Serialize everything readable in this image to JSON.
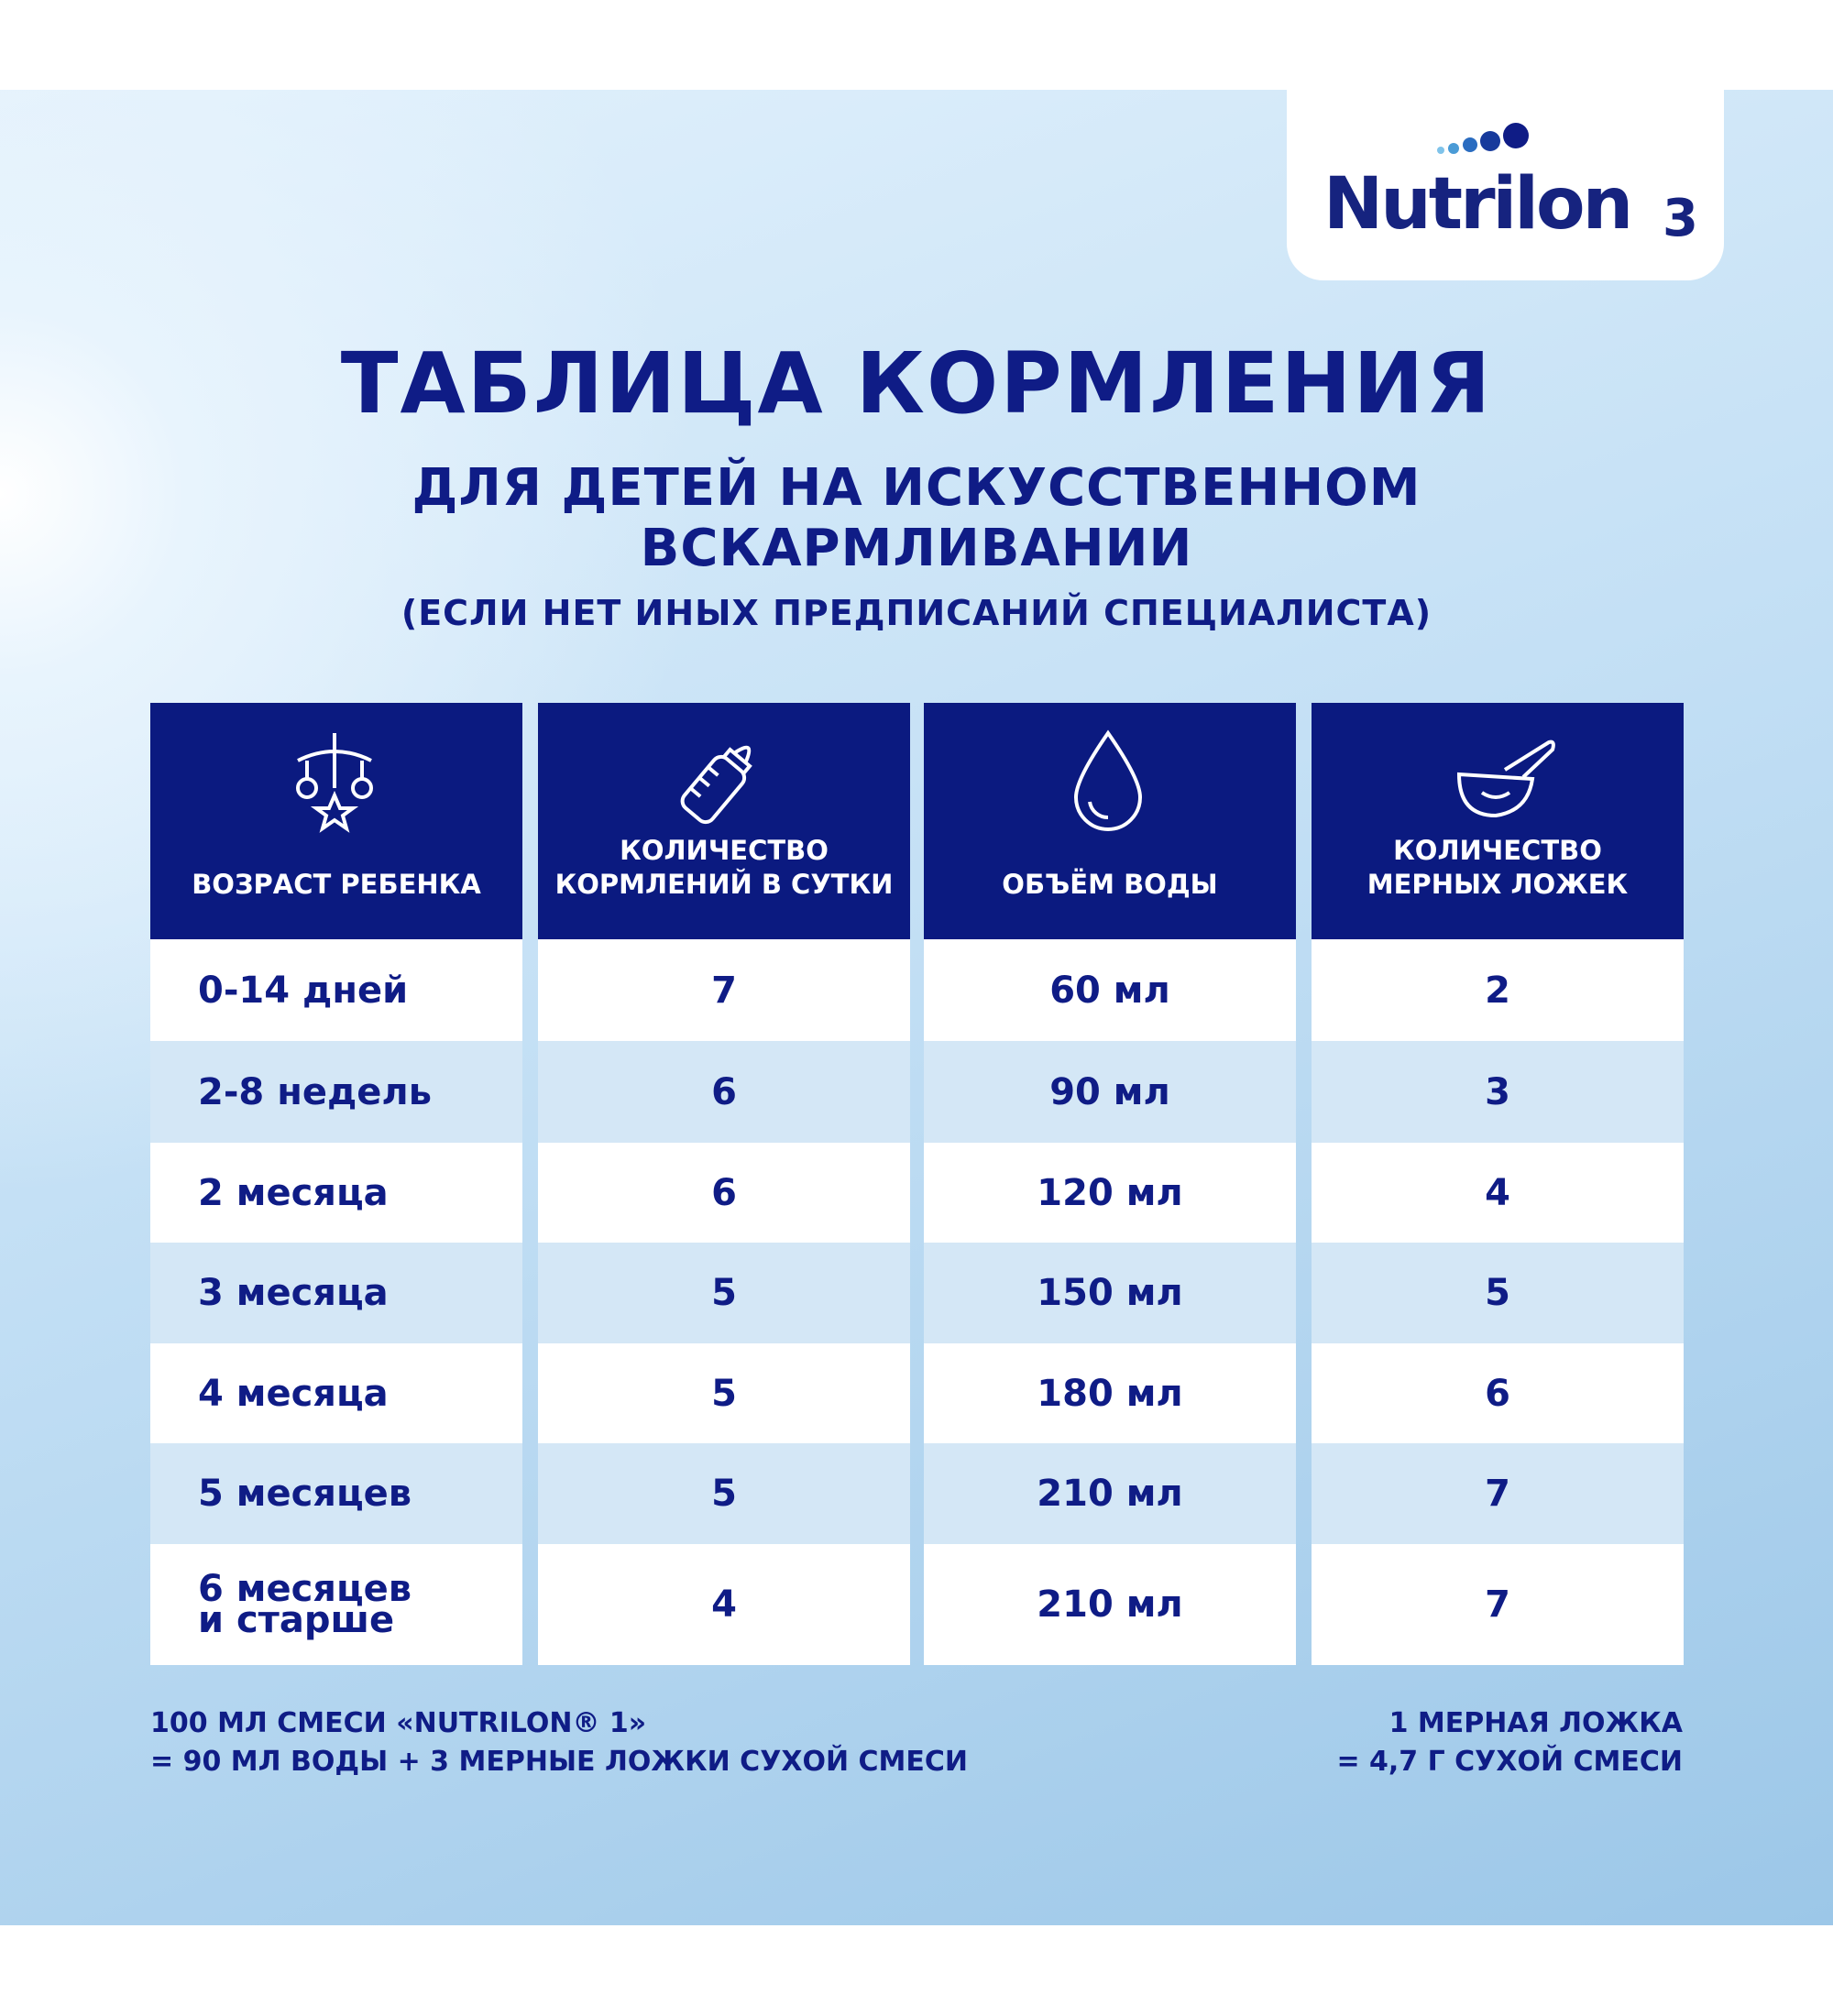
{
  "logo": {
    "brand": "Nutrilon",
    "stage": "3"
  },
  "title": "ТАБЛИЦА КОРМЛЕНИЯ",
  "subtitle": [
    "ДЛЯ ДЕТЕЙ НА ИСКУССТВЕННОМ",
    "ВСКАРМЛИВАНИИ"
  ],
  "note": "(ЕСЛИ НЕТ ИНЫХ ПРЕДПИСАНИЙ СПЕЦИАЛИСТА)",
  "table": {
    "columns": [
      "ВОЗРАСТ РЕБЕНКА",
      "КОЛИЧЕСТВО\nКОРМЛЕНИЙ В СУТКИ",
      "ОБЪЁМ ВОДЫ",
      "КОЛИЧЕСТВО\nМЕРНЫХ ЛОЖЕК"
    ],
    "rows": [
      [
        "0-14 дней",
        "7",
        "60 мл",
        "2"
      ],
      [
        "2-8 недель",
        "6",
        "90 мл",
        "3"
      ],
      [
        "2 месяца",
        "6",
        "120 мл",
        "4"
      ],
      [
        "3 месяца",
        "5",
        "150 мл",
        "5"
      ],
      [
        "4 месяца",
        "5",
        "180 мл",
        "6"
      ],
      [
        "5 месяцев",
        "5",
        "210 мл",
        "7"
      ],
      [
        "6 месяцев\nи старше",
        "4",
        "210 мл",
        "7"
      ]
    ]
  },
  "footer": {
    "left": [
      "100 МЛ СМЕСИ «NUTRILON® 1»",
      "= 90 МЛ ВОДЫ + 3 МЕРНЫЕ ЛОЖКИ СУХОЙ СМЕСИ"
    ],
    "right": [
      "1 МЕРНАЯ ЛОЖКА",
      "= 4,7 Г СУХОЙ СМЕСИ"
    ]
  }
}
